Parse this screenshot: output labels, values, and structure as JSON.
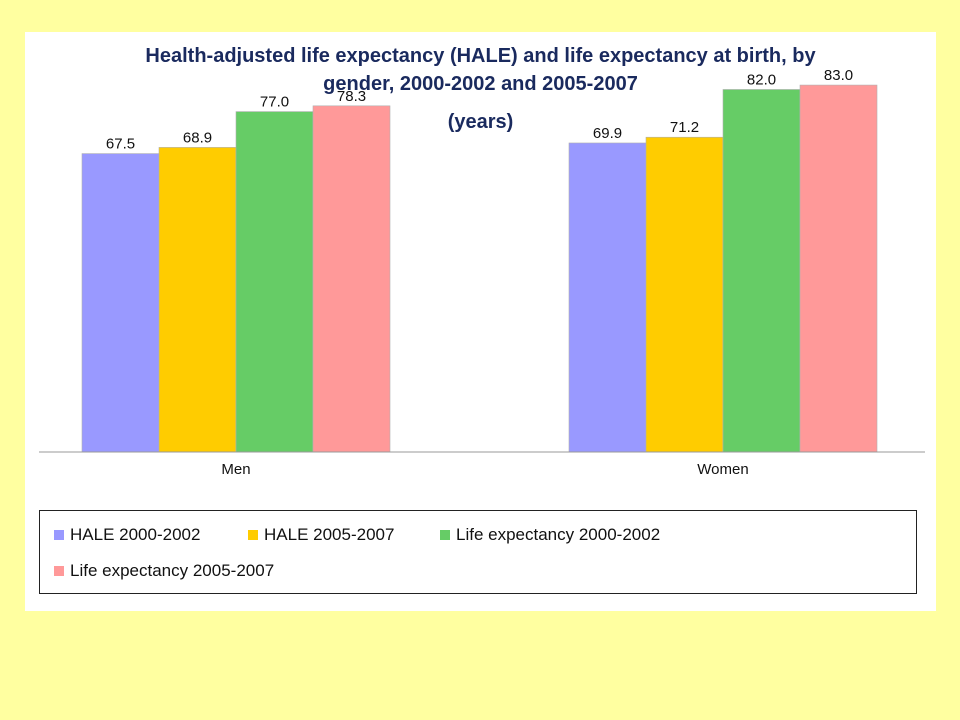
{
  "chart_data": {
    "type": "bar",
    "title": "Health-adjusted life expectancy (HALE) and life expectancy at birth, by gender, 2000-2002 and 2005-2007",
    "title_lines": [
      "Health-adjusted life expectancy (HALE) and life expectancy at birth, by",
      "gender, 2000-2002 and 2005-2007"
    ],
    "subtitle": "(years)",
    "categories": [
      "Men",
      "Women"
    ],
    "series": [
      {
        "name": "HALE 2000-2002",
        "color": "#9999ff",
        "values": [
          67.5,
          69.9
        ],
        "labels": [
          "67.5",
          "69.9"
        ]
      },
      {
        "name": "HALE 2005-2007",
        "color": "#ffcc00",
        "values": [
          68.9,
          71.2
        ],
        "labels": [
          "68.9",
          "71.2"
        ]
      },
      {
        "name": "Life expectancy 2000-2002",
        "color": "#66cc66",
        "values": [
          77.0,
          82.0
        ],
        "labels": [
          "77.0",
          "82.0"
        ]
      },
      {
        "name": "Life expectancy 2005-2007",
        "color": "#ff9999",
        "values": [
          78.3,
          83.0
        ],
        "labels": [
          "78.3",
          "83.0"
        ]
      }
    ],
    "ylim": [
      0,
      95
    ],
    "grid": false,
    "legend_position": "bottom"
  }
}
